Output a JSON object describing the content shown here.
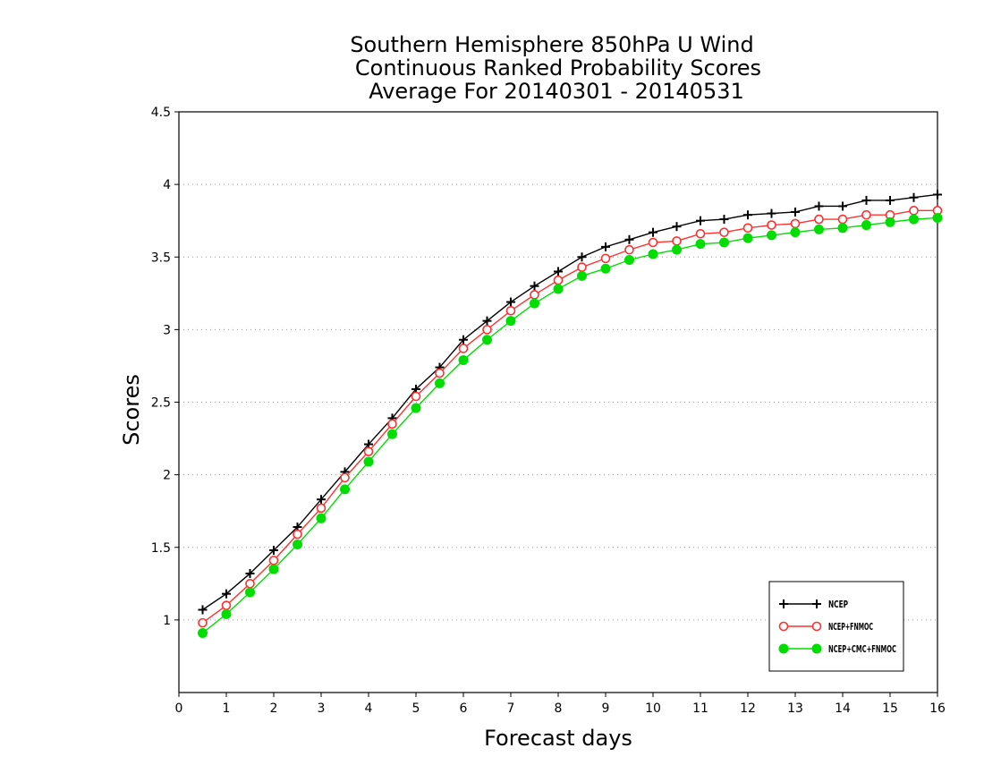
{
  "chart_data": {
    "type": "line",
    "title": [
      "Southern Hemisphere 850hPa U Wind",
      "Continuous Ranked Probability Scores",
      "Average For 20140301 - 20140531"
    ],
    "xlabel": "Forecast days",
    "ylabel": "Scores",
    "xlim": [
      0,
      16
    ],
    "ylim": [
      0.5,
      4.5
    ],
    "xticks": [
      "0",
      "1",
      "2",
      "3",
      "4",
      "5",
      "6",
      "7",
      "8",
      "9",
      "10",
      "11",
      "12",
      "13",
      "14",
      "15",
      "16"
    ],
    "yticks": [
      "1",
      "1.5",
      "2",
      "2.5",
      "3",
      "3.5",
      "4",
      "4.5"
    ],
    "grid": "horizontal-dotted",
    "legend_position": "bottom-right",
    "x": [
      0.5,
      1,
      1.5,
      2,
      2.5,
      3,
      3.5,
      4,
      4.5,
      5,
      5.5,
      6,
      6.5,
      7,
      7.5,
      8,
      8.5,
      9,
      9.5,
      10,
      10.5,
      11,
      11.5,
      12,
      12.5,
      13,
      13.5,
      14,
      14.5,
      15,
      15.5,
      16
    ],
    "series": [
      {
        "name": "NCEP",
        "color": "#000000",
        "marker": "plus",
        "values": [
          1.07,
          1.18,
          1.32,
          1.48,
          1.64,
          1.83,
          2.02,
          2.21,
          2.39,
          2.59,
          2.74,
          2.93,
          3.06,
          3.19,
          3.3,
          3.4,
          3.5,
          3.57,
          3.62,
          3.67,
          3.71,
          3.75,
          3.76,
          3.79,
          3.8,
          3.81,
          3.85,
          3.85,
          3.89,
          3.89,
          3.91,
          3.93
        ]
      },
      {
        "name": "NCEP+FNMOC",
        "color": "#ff3030",
        "marker": "open-circle",
        "values": [
          0.98,
          1.1,
          1.25,
          1.41,
          1.59,
          1.77,
          1.98,
          2.16,
          2.35,
          2.54,
          2.7,
          2.87,
          3.0,
          3.13,
          3.24,
          3.34,
          3.43,
          3.49,
          3.55,
          3.6,
          3.61,
          3.66,
          3.67,
          3.7,
          3.72,
          3.73,
          3.76,
          3.76,
          3.79,
          3.79,
          3.82,
          3.82
        ]
      },
      {
        "name": "NCEP+CMC+FNMOC",
        "color": "#00dd00",
        "marker": "filled-circle",
        "values": [
          0.91,
          1.04,
          1.19,
          1.35,
          1.52,
          1.7,
          1.9,
          2.09,
          2.28,
          2.46,
          2.63,
          2.79,
          2.93,
          3.06,
          3.18,
          3.28,
          3.37,
          3.42,
          3.48,
          3.52,
          3.55,
          3.59,
          3.6,
          3.63,
          3.65,
          3.67,
          3.69,
          3.7,
          3.72,
          3.74,
          3.76,
          3.77
        ]
      }
    ]
  }
}
